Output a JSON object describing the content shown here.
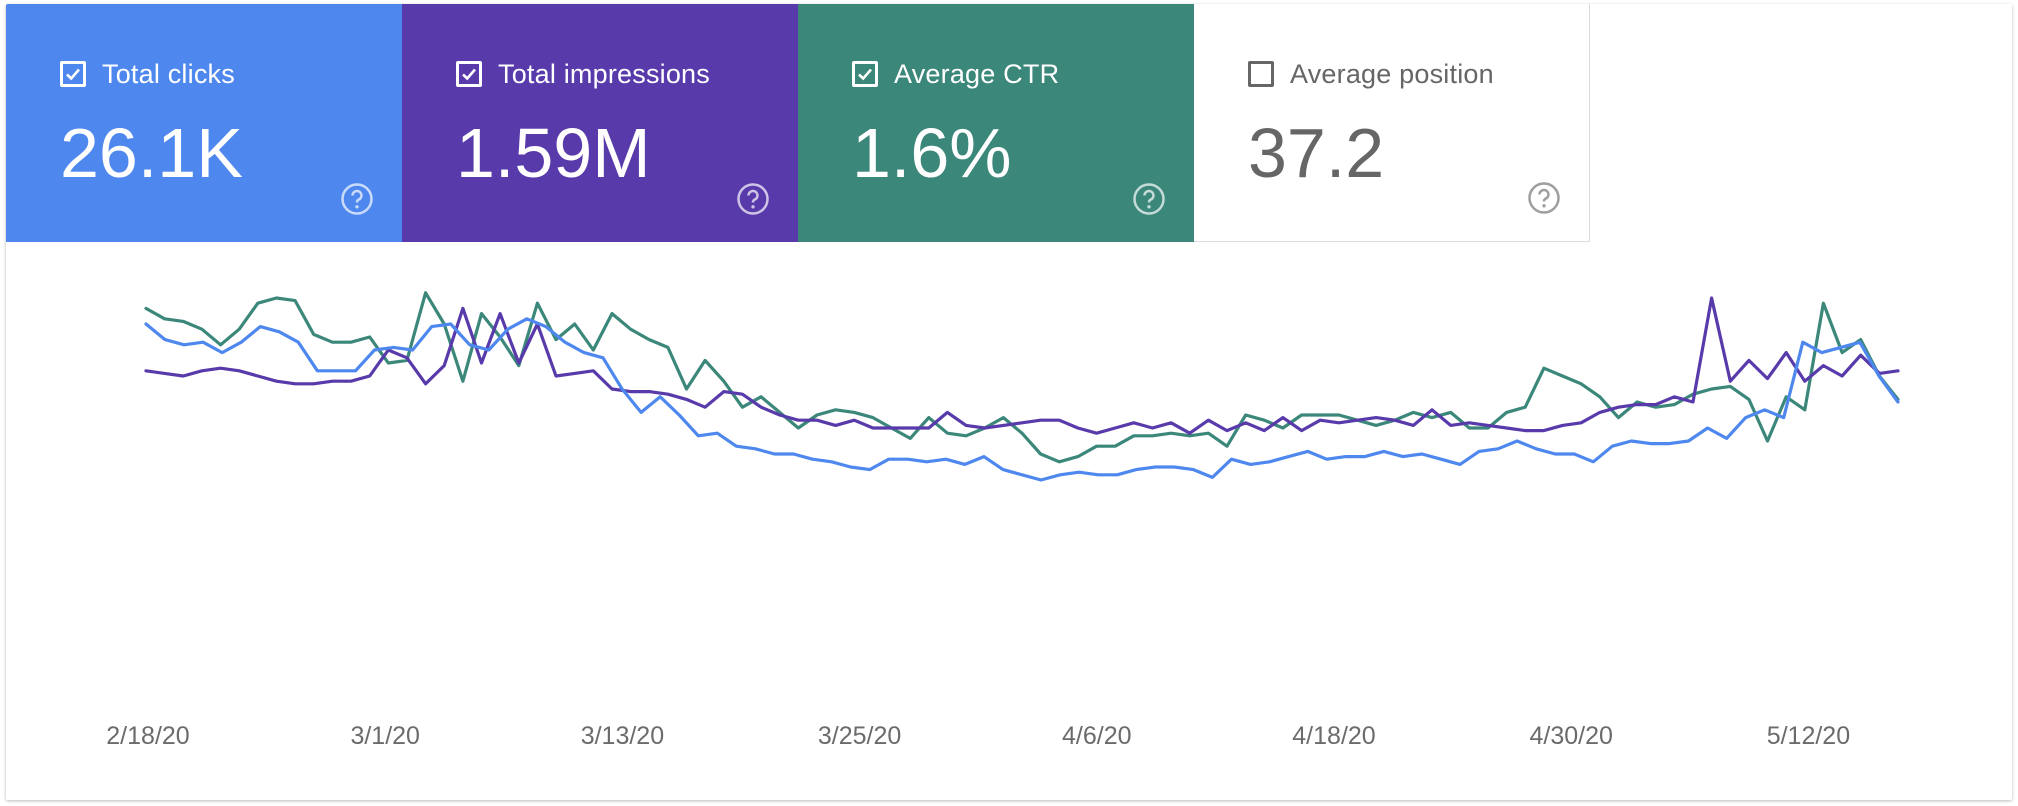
{
  "cards": {
    "clicks": {
      "label": "Total clicks",
      "value": "26.1K",
      "checked": true,
      "color": "#4e88ef"
    },
    "impressions": {
      "label": "Total impressions",
      "value": "1.59M",
      "checked": true,
      "color": "#583aab"
    },
    "ctr": {
      "label": "Average CTR",
      "value": "1.6%",
      "checked": true,
      "color": "#3b877a"
    },
    "position": {
      "label": "Average position",
      "value": "37.2",
      "checked": false,
      "color": "#666666"
    }
  },
  "chart_data": {
    "type": "line",
    "x_ticks": [
      "2/18/20",
      "3/1/20",
      "3/13/20",
      "3/25/20",
      "4/6/20",
      "4/18/20",
      "4/30/20",
      "5/12/20"
    ],
    "ylim": [
      0,
      100
    ],
    "grid": false,
    "legend": "none",
    "series": [
      {
        "color": "#3b877a",
        "values": [
          86,
          82,
          81,
          78,
          72,
          78,
          88,
          90,
          89,
          76,
          73,
          73,
          75,
          65,
          66,
          92,
          80,
          58,
          84,
          75,
          64,
          88,
          74,
          80,
          70,
          84,
          78,
          74,
          71,
          55,
          66,
          58,
          48,
          52,
          46,
          40,
          45,
          47,
          46,
          44,
          40,
          36,
          44,
          38,
          37,
          40,
          44,
          38,
          30,
          27,
          29,
          33,
          33,
          37,
          37,
          38,
          37,
          38,
          33,
          45,
          43,
          40,
          45,
          45,
          45,
          43,
          41,
          43,
          46,
          44,
          46,
          40,
          40,
          46,
          48,
          63,
          60,
          57,
          52,
          44,
          50,
          48,
          49,
          53,
          55,
          56,
          51,
          35,
          52,
          47,
          88,
          69,
          74,
          60,
          51
        ]
      },
      {
        "color": "#583aab",
        "values": [
          62,
          61,
          60,
          62,
          63,
          62,
          60,
          58,
          57,
          57,
          58,
          58,
          60,
          70,
          67,
          57,
          64,
          86,
          65,
          84,
          65,
          80,
          60,
          61,
          62,
          55,
          54,
          54,
          53,
          51,
          48,
          54,
          53,
          48,
          45,
          43,
          43,
          41,
          43,
          40,
          40,
          40,
          40,
          46,
          41,
          40,
          41,
          42,
          43,
          43,
          40,
          38,
          40,
          42,
          40,
          42,
          38,
          43,
          39,
          42,
          39,
          44,
          39,
          43,
          42,
          43,
          44,
          43,
          41,
          47,
          41,
          42,
          41,
          40,
          39,
          39,
          41,
          42,
          46,
          48,
          49,
          49,
          52,
          50,
          90,
          58,
          66,
          59,
          69,
          58,
          64,
          60,
          68,
          61,
          62
        ]
      },
      {
        "color": "#4e88ef",
        "values": [
          80,
          74,
          72,
          73,
          69,
          73,
          79,
          77,
          73,
          62,
          62,
          62,
          70,
          71,
          70,
          79,
          80,
          72,
          70,
          78,
          82,
          79,
          73,
          69,
          67,
          55,
          46,
          52,
          45,
          37,
          38,
          33,
          32,
          30,
          30,
          28,
          27,
          25,
          24,
          28,
          28,
          27,
          28,
          26,
          29,
          24,
          22,
          20,
          22,
          23,
          22,
          22,
          24,
          25,
          25,
          24,
          21,
          28,
          26,
          27,
          29,
          31,
          28,
          29,
          29,
          31,
          29,
          30,
          28,
          26,
          31,
          32,
          35,
          32,
          30,
          30,
          27,
          33,
          35,
          34,
          34,
          35,
          40,
          36,
          44,
          47,
          44,
          73,
          69,
          71,
          73,
          60,
          50
        ]
      }
    ]
  }
}
